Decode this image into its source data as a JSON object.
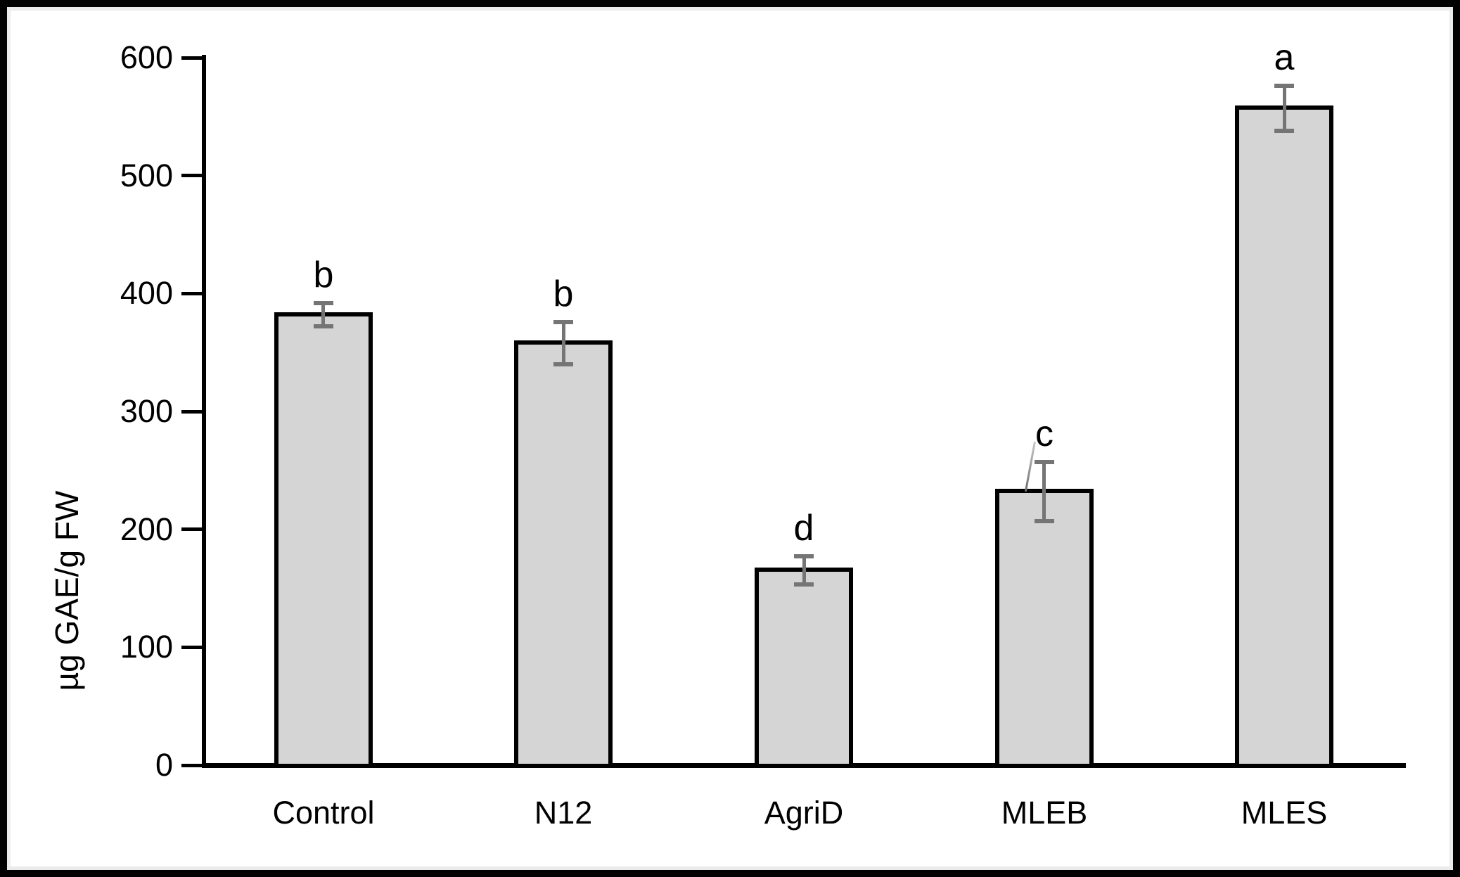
{
  "chart_data": {
    "type": "bar",
    "title": "",
    "categories": [
      "Control",
      "N12",
      "AgriD",
      "MLEB",
      "MLES"
    ],
    "values": [
      382,
      358,
      165,
      232,
      557
    ],
    "error_bars": [
      10,
      18,
      12,
      25,
      19
    ],
    "sig_letters": [
      "b",
      "b",
      "d",
      "c",
      "a"
    ],
    "xlabel": "",
    "ylabel": "µg GAE/g FW",
    "ylim": [
      0,
      600
    ],
    "yticks": [
      0,
      100,
      200,
      300,
      400,
      500,
      600
    ],
    "grid": false,
    "legend": "none",
    "colors": {
      "bar_fill": "#d5d5d5",
      "bar_border": "#000000",
      "error_bar": "#757575",
      "axis": "#000000",
      "text": "#000000",
      "background": "#ffffff"
    }
  }
}
